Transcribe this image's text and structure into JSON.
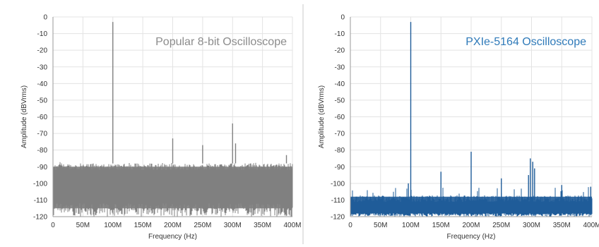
{
  "chart_data": [
    {
      "id": "left",
      "type": "line",
      "title": "Popular 8-bit Oscilloscope",
      "title_color": "#8c8c8c",
      "series_color": "#808080",
      "xlabel": "Frequency (Hz)",
      "ylabel": "Amplitude (dBVrms)",
      "xlim": [
        0,
        400
      ],
      "ylim": [
        -120,
        0
      ],
      "x_ticks": [
        "0",
        "50M",
        "100M",
        "150M",
        "200M",
        "250M",
        "300M",
        "350M",
        "400M"
      ],
      "y_ticks": [
        "0",
        "-10",
        "-20",
        "-30",
        "-40",
        "-50",
        "-60",
        "-70",
        "-80",
        "-90",
        "-100",
        "-110",
        "-120"
      ],
      "grid": true,
      "noise_floor": {
        "top": -88,
        "bottom": -120
      },
      "spurs": [
        {
          "x": 100,
          "y": -3
        },
        {
          "x": 200,
          "y": -73
        },
        {
          "x": 250,
          "y": -77
        },
        {
          "x": 300,
          "y": -64
        },
        {
          "x": 305,
          "y": -76
        },
        {
          "x": 390,
          "y": -83
        }
      ]
    },
    {
      "id": "right",
      "type": "line",
      "title": "PXIe-5164 Oscilloscope",
      "title_color": "#2f7ab9",
      "series_color": "#1f5c99",
      "xlabel": "Frequency (Hz)",
      "ylabel": "Amplitude (dBVrms)",
      "xlim": [
        0,
        400
      ],
      "ylim": [
        -120,
        0
      ],
      "x_ticks": [
        "0",
        "50M",
        "100M",
        "150M",
        "200M",
        "250M",
        "300M",
        "350M",
        "400M"
      ],
      "y_ticks": [
        "0",
        "-10",
        "-20",
        "-30",
        "-40",
        "-50",
        "-60",
        "-70",
        "-80",
        "-90",
        "-100",
        "-110",
        "-120"
      ],
      "grid": true,
      "noise_floor": {
        "top": -110,
        "bottom": -120
      },
      "spurs": [
        {
          "x": 100,
          "y": -3
        },
        {
          "x": 96,
          "y": -100
        },
        {
          "x": 150,
          "y": -93
        },
        {
          "x": 200,
          "y": -81
        },
        {
          "x": 250,
          "y": -97
        },
        {
          "x": 295,
          "y": -95
        },
        {
          "x": 298,
          "y": -85
        },
        {
          "x": 302,
          "y": -87
        },
        {
          "x": 305,
          "y": -91
        },
        {
          "x": 350,
          "y": -101
        },
        {
          "x": 398,
          "y": -102
        }
      ]
    }
  ]
}
